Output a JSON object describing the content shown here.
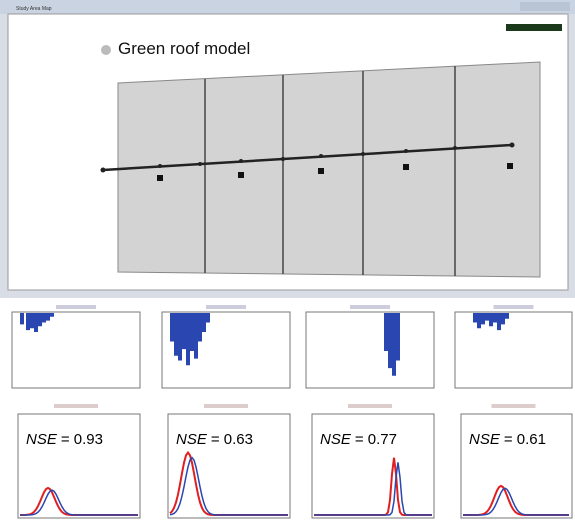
{
  "window": {
    "title": "Study Area Map"
  },
  "map": {
    "label": "Green roof model"
  },
  "panels": [
    {
      "metric": "NSE",
      "value_text": "= 0.93"
    },
    {
      "metric": "NSE",
      "value_text": "= 0.63"
    },
    {
      "metric": "NSE",
      "value_text": "= 0.77"
    },
    {
      "metric": "NSE",
      "value_text": "= 0.61"
    }
  ]
}
